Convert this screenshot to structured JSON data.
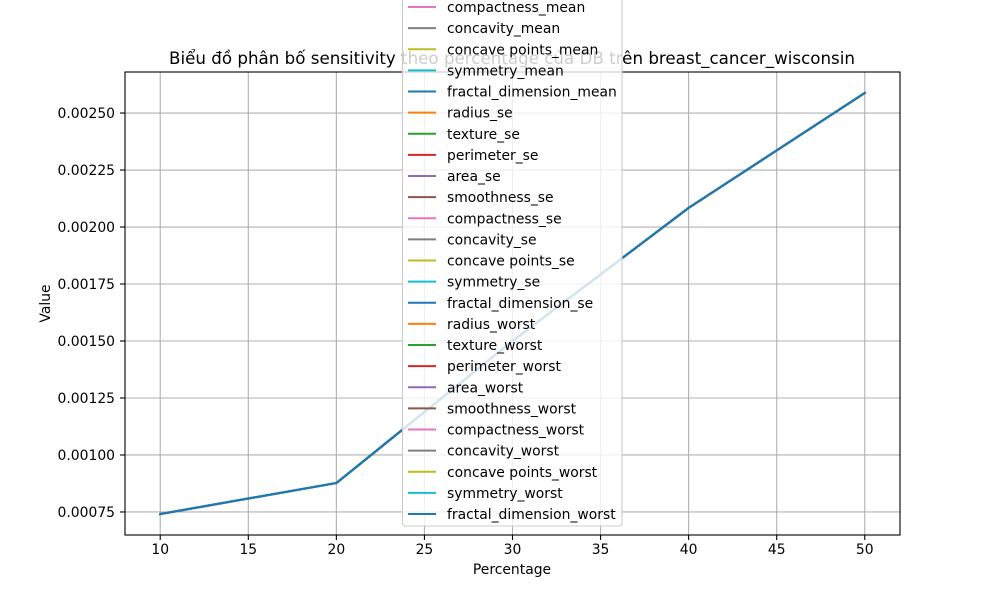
{
  "chart_data": {
    "type": "line",
    "title": "Biểu đồ phân bố sensitivity theo percentage của DB trên breast_cancer_wisconsin",
    "xlabel": "Percentage",
    "ylabel": "Value",
    "x": [
      10,
      20,
      30,
      40,
      50
    ],
    "xlim": [
      8,
      52
    ],
    "ylim": [
      0.000649,
      0.00268
    ],
    "xticks": [
      10,
      15,
      20,
      25,
      30,
      35,
      40,
      45,
      50
    ],
    "xtick_labels": [
      "10",
      "15",
      "20",
      "25",
      "30",
      "35",
      "40",
      "45",
      "50"
    ],
    "yticks": [
      0.00075,
      0.001,
      0.00125,
      0.0015,
      0.00175,
      0.002,
      0.00225,
      0.0025
    ],
    "ytick_labels": [
      "0.00075",
      "0.00100",
      "0.00125",
      "0.00150",
      "0.00175",
      "0.00200",
      "0.00225",
      "0.00250"
    ],
    "grid": true,
    "legend": "upper center",
    "series": [
      {
        "name": "compactness_mean",
        "color": "#e377c2",
        "values": [
          0.000741,
          0.000877,
          0.0015,
          0.002084,
          0.002588
        ]
      },
      {
        "name": "concavity_mean",
        "color": "#7f7f7f",
        "values": [
          0.000741,
          0.000877,
          0.0015,
          0.002084,
          0.002588
        ]
      },
      {
        "name": "concave points_mean",
        "color": "#bcbd22",
        "values": [
          0.000741,
          0.000877,
          0.0015,
          0.002084,
          0.002588
        ]
      },
      {
        "name": "symmetry_mean",
        "color": "#17becf",
        "values": [
          0.000741,
          0.000877,
          0.0015,
          0.002084,
          0.002588
        ]
      },
      {
        "name": "fractal_dimension_mean",
        "color": "#1f77b4",
        "values": [
          0.000741,
          0.000877,
          0.0015,
          0.002084,
          0.002588
        ]
      },
      {
        "name": "radius_se",
        "color": "#ff7f0e",
        "values": [
          0.000741,
          0.000877,
          0.0015,
          0.002084,
          0.002588
        ]
      },
      {
        "name": "texture_se",
        "color": "#2ca02c",
        "values": [
          0.000741,
          0.000877,
          0.0015,
          0.002084,
          0.002588
        ]
      },
      {
        "name": "perimeter_se",
        "color": "#d62728",
        "values": [
          0.000741,
          0.000877,
          0.0015,
          0.002084,
          0.002588
        ]
      },
      {
        "name": "area_se",
        "color": "#9467bd",
        "values": [
          0.000741,
          0.000877,
          0.0015,
          0.002084,
          0.002588
        ]
      },
      {
        "name": "smoothness_se",
        "color": "#8c564b",
        "values": [
          0.000741,
          0.000877,
          0.0015,
          0.002084,
          0.002588
        ]
      },
      {
        "name": "compactness_se",
        "color": "#e377c2",
        "values": [
          0.000741,
          0.000877,
          0.0015,
          0.002084,
          0.002588
        ]
      },
      {
        "name": "concavity_se",
        "color": "#7f7f7f",
        "values": [
          0.000741,
          0.000877,
          0.0015,
          0.002084,
          0.002588
        ]
      },
      {
        "name": "concave points_se",
        "color": "#bcbd22",
        "values": [
          0.000741,
          0.000877,
          0.0015,
          0.002084,
          0.002588
        ]
      },
      {
        "name": "symmetry_se",
        "color": "#17becf",
        "values": [
          0.000741,
          0.000877,
          0.0015,
          0.002084,
          0.002588
        ]
      },
      {
        "name": "fractal_dimension_se",
        "color": "#1f77b4",
        "values": [
          0.000741,
          0.000877,
          0.0015,
          0.002084,
          0.002588
        ]
      },
      {
        "name": "radius_worst",
        "color": "#ff7f0e",
        "values": [
          0.000741,
          0.000877,
          0.0015,
          0.002084,
          0.002588
        ]
      },
      {
        "name": "texture_worst",
        "color": "#2ca02c",
        "values": [
          0.000741,
          0.000877,
          0.0015,
          0.002084,
          0.002588
        ]
      },
      {
        "name": "perimeter_worst",
        "color": "#d62728",
        "values": [
          0.000741,
          0.000877,
          0.0015,
          0.002084,
          0.002588
        ]
      },
      {
        "name": "area_worst",
        "color": "#9467bd",
        "values": [
          0.000741,
          0.000877,
          0.0015,
          0.002084,
          0.002588
        ]
      },
      {
        "name": "smoothness_worst",
        "color": "#8c564b",
        "values": [
          0.000741,
          0.000877,
          0.0015,
          0.002084,
          0.002588
        ]
      },
      {
        "name": "compactness_worst",
        "color": "#e377c2",
        "values": [
          0.000741,
          0.000877,
          0.0015,
          0.002084,
          0.002588
        ]
      },
      {
        "name": "concavity_worst",
        "color": "#7f7f7f",
        "values": [
          0.000741,
          0.000877,
          0.0015,
          0.002084,
          0.002588
        ]
      },
      {
        "name": "concave points_worst",
        "color": "#bcbd22",
        "values": [
          0.000741,
          0.000877,
          0.0015,
          0.002084,
          0.002588
        ]
      },
      {
        "name": "symmetry_worst",
        "color": "#17becf",
        "values": [
          0.000741,
          0.000877,
          0.0015,
          0.002084,
          0.002588
        ]
      },
      {
        "name": "fractal_dimension_worst",
        "color": "#1f77b4",
        "values": [
          0.000741,
          0.000877,
          0.0015,
          0.002084,
          0.002588
        ]
      }
    ]
  }
}
